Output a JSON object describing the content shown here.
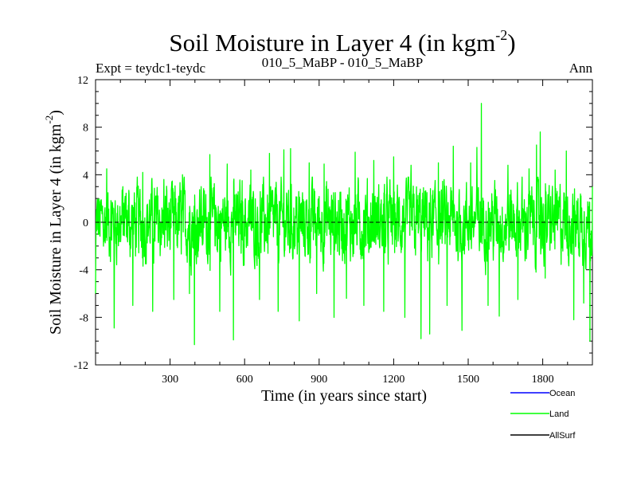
{
  "chart_data": {
    "type": "line",
    "title": "Soil Moisture in Layer 4 (in kgm",
    "title_superscript": "-2",
    "title_suffix": ")",
    "subtitle_left": "Expt = teydc1-teydc",
    "subtitle_center": "010_5_MaBP - 010_5_MaBP",
    "subtitle_right": "Ann",
    "xlabel": "Time (in years since start)",
    "ylabel": "Soil Moisture in Layer 4 (in kgm",
    "ylabel_superscript": "-2",
    "ylabel_suffix": ")",
    "xlim": [
      0,
      2000
    ],
    "ylim": [
      -12,
      12
    ],
    "x_ticks": [
      300,
      600,
      900,
      1200,
      1500,
      1800
    ],
    "x_tick_labels": [
      "300",
      "600",
      "900",
      "1200",
      "1500",
      "1800"
    ],
    "y_ticks": [
      -12,
      -8,
      -4,
      0,
      4,
      8,
      12
    ],
    "y_tick_labels": [
      "-12",
      "-8",
      "-4",
      "0",
      "4",
      "8",
      "12"
    ],
    "reference_line": 0,
    "series": [
      {
        "name": "Land",
        "color": "#00ff00",
        "anchors": [
          [
            0,
            -6.0
          ],
          [
            20,
            1.0
          ],
          [
            45,
            4.5
          ],
          [
            75,
            -8.9
          ],
          [
            110,
            3.0
          ],
          [
            150,
            -7.0
          ],
          [
            190,
            4.2
          ],
          [
            230,
            -7.5
          ],
          [
            275,
            3.6
          ],
          [
            315,
            -6.5
          ],
          [
            350,
            4.0
          ],
          [
            378,
            -6.0
          ],
          [
            398,
            -10.3
          ],
          [
            425,
            3.0
          ],
          [
            460,
            5.7
          ],
          [
            500,
            -7.5
          ],
          [
            530,
            4.9
          ],
          [
            555,
            -9.9
          ],
          [
            590,
            3.5
          ],
          [
            625,
            4.4
          ],
          [
            660,
            -6.5
          ],
          [
            700,
            5.8
          ],
          [
            735,
            -7.5
          ],
          [
            758,
            6.1
          ],
          [
            785,
            6.2
          ],
          [
            820,
            -8.3
          ],
          [
            860,
            5.0
          ],
          [
            890,
            -6.0
          ],
          [
            920,
            4.9
          ],
          [
            960,
            -8.0
          ],
          [
            1010,
            -6.4
          ],
          [
            1045,
            5.9
          ],
          [
            1080,
            -7.0
          ],
          [
            1120,
            5.2
          ],
          [
            1160,
            -7.5
          ],
          [
            1200,
            5.5
          ],
          [
            1245,
            -8.0
          ],
          [
            1270,
            4.8
          ],
          [
            1310,
            -9.8
          ],
          [
            1345,
            -9.4
          ],
          [
            1380,
            5.0
          ],
          [
            1415,
            -7.0
          ],
          [
            1440,
            6.4
          ],
          [
            1475,
            -9.1
          ],
          [
            1510,
            5.0
          ],
          [
            1535,
            6.3
          ],
          [
            1553,
            10.0
          ],
          [
            1580,
            -7.0
          ],
          [
            1625,
            -7.9
          ],
          [
            1660,
            4.8
          ],
          [
            1700,
            -6.5
          ],
          [
            1745,
            4.5
          ],
          [
            1775,
            6.5
          ],
          [
            1790,
            7.6
          ],
          [
            1810,
            -4.7
          ],
          [
            1850,
            4.4
          ],
          [
            1895,
            6.0
          ],
          [
            1925,
            -8.2
          ],
          [
            1965,
            -6.8
          ],
          [
            1990,
            -10.0
          ],
          [
            2000,
            3.0
          ]
        ]
      }
    ],
    "legend": [
      {
        "name": "Ocean",
        "color": "#0000ff"
      },
      {
        "name": "Land",
        "color": "#00ff00"
      },
      {
        "name": "AllSurf",
        "color": "#000000"
      }
    ]
  }
}
